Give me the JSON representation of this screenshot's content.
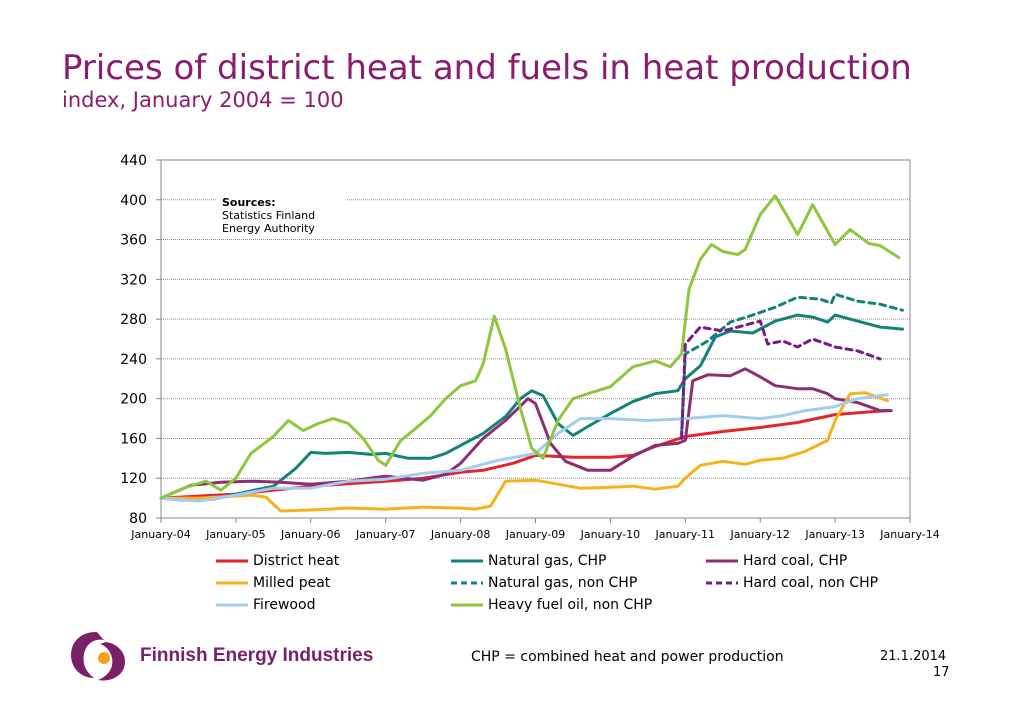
{
  "header": {
    "title": "Prices of district heat and fuels in heat production",
    "subtitle": "index, January 2004 = 100"
  },
  "sources_box": {
    "heading": "Sources:",
    "line1": "Statistics Finland",
    "line2": "Energy Authority"
  },
  "footer": {
    "logo_text": "Finnish Energy Industries",
    "note": "CHP = combined heat and power production",
    "date": "21.1.2014",
    "page": "17"
  },
  "colors": {
    "title": "#8a1d6e",
    "district_heat": "#e3262b",
    "natural_gas": "#138279",
    "hard_coal_chp": "#8b2f72",
    "hard_coal_nonchp": "#7a1a86",
    "milled_peat": "#f7b21b",
    "firewood": "#a3cdf0",
    "heavy_fuel_oil": "#8dc63f"
  },
  "chart_data": {
    "type": "line",
    "ylim": [
      80,
      440
    ],
    "yticks": [
      "80",
      "120",
      "160",
      "200",
      "240",
      "280",
      "320",
      "360",
      "400",
      "440"
    ],
    "xlim": [
      2004.0,
      2014.0
    ],
    "xtick_labels": [
      "January-04",
      "January-05",
      "January-06",
      "January-07",
      "January-08",
      "January-09",
      "January-10",
      "January-11",
      "January-12",
      "January-13",
      "January-14"
    ],
    "grid": true,
    "legend_position": "bottom",
    "series": [
      {
        "name": "District heat",
        "color": "#e3262b",
        "dash": false,
        "x": [
          2004.0,
          2005.0,
          2006.0,
          2007.0,
          2007.5,
          2008.0,
          2008.3,
          2008.7,
          2009.0,
          2009.5,
          2010.0,
          2010.3,
          2010.6,
          2011.0,
          2011.5,
          2012.0,
          2012.5,
          2013.0,
          2013.5,
          2013.7
        ],
        "y": [
          100,
          104,
          112,
          117,
          120,
          126,
          128,
          135,
          143,
          141,
          141,
          143,
          152,
          162,
          167,
          171,
          176,
          184,
          187,
          188
        ]
      },
      {
        "name": "Natural gas, CHP",
        "color": "#138279",
        "dash": false,
        "x": [
          2004.0,
          2004.3,
          2004.7,
          2005.0,
          2005.5,
          2005.8,
          2006.0,
          2006.2,
          2006.5,
          2006.8,
          2007.0,
          2007.3,
          2007.6,
          2007.8,
          2008.0,
          2008.3,
          2008.6,
          2008.8,
          2008.95,
          2009.1,
          2009.3,
          2009.5,
          2009.7,
          2010.0,
          2010.3,
          2010.6,
          2010.9,
          2011.0,
          2011.2,
          2011.4,
          2011.6,
          2011.9,
          2012.2,
          2012.5,
          2012.7,
          2012.9,
          2013.0,
          2013.3,
          2013.6,
          2013.9
        ],
        "y": [
          100,
          98,
          99,
          104,
          112,
          130,
          146,
          145,
          146,
          144,
          145,
          140,
          140,
          145,
          153,
          165,
          182,
          200,
          208,
          203,
          175,
          163,
          172,
          185,
          197,
          205,
          208,
          220,
          233,
          262,
          268,
          266,
          278,
          284,
          282,
          277,
          284,
          278,
          272,
          270
        ]
      },
      {
        "name": "Hard coal, CHP",
        "color": "#8b2f72",
        "dash": false,
        "x": [
          2004.0,
          2004.4,
          2004.8,
          2005.2,
          2005.6,
          2006.0,
          2006.5,
          2007.0,
          2007.5,
          2007.8,
          2008.0,
          2008.3,
          2008.6,
          2008.9,
          2009.0,
          2009.2,
          2009.4,
          2009.7,
          2010.0,
          2010.3,
          2010.6,
          2010.9,
          2011.0,
          2011.1,
          2011.3,
          2011.6,
          2011.8,
          2012.0,
          2012.2,
          2012.5,
          2012.7,
          2012.9,
          2013.0,
          2013.3,
          2013.6,
          2013.75
        ],
        "y": [
          100,
          113,
          116,
          117,
          116,
          114,
          117,
          122,
          118,
          124,
          135,
          160,
          178,
          200,
          195,
          155,
          137,
          128,
          128,
          142,
          153,
          155,
          158,
          218,
          224,
          223,
          230,
          222,
          213,
          210,
          210,
          205,
          200,
          196,
          188,
          188
        ]
      },
      {
        "name": "Milled peat",
        "color": "#f7b21b",
        "dash": false,
        "x": [
          2004.0,
          2004.5,
          2005.0,
          2005.2,
          2005.4,
          2005.6,
          2006.0,
          2006.5,
          2007.0,
          2007.5,
          2008.0,
          2008.2,
          2008.4,
          2008.6,
          2009.0,
          2009.3,
          2009.6,
          2010.0,
          2010.3,
          2010.6,
          2010.9,
          2011.0,
          2011.2,
          2011.5,
          2011.8,
          2012.0,
          2012.3,
          2012.6,
          2012.9,
          2013.0,
          2013.2,
          2013.4,
          2013.7
        ],
        "y": [
          100,
          100,
          102,
          103,
          101,
          87,
          88,
          90,
          89,
          91,
          90,
          89,
          92,
          117,
          118,
          114,
          110,
          111,
          112,
          109,
          112,
          120,
          133,
          137,
          134,
          138,
          140,
          147,
          158,
          178,
          205,
          206,
          198
        ]
      },
      {
        "name": "Firewood",
        "color": "#a3cdf0",
        "dash": false,
        "x": [
          2004.0,
          2004.5,
          2005.0,
          2005.5,
          2006.0,
          2006.5,
          2007.0,
          2007.5,
          2008.0,
          2008.5,
          2009.0,
          2009.3,
          2009.6,
          2010.0,
          2010.5,
          2011.0,
          2011.5,
          2012.0,
          2012.3,
          2012.6,
          2013.0,
          2013.3,
          2013.7
        ],
        "y": [
          100,
          97,
          103,
          110,
          110,
          117,
          119,
          125,
          128,
          138,
          145,
          165,
          180,
          180,
          178,
          180,
          183,
          180,
          183,
          188,
          192,
          200,
          204
        ]
      },
      {
        "name": "Heavy fuel oil, non CHP",
        "color": "#8dc63f",
        "dash": false,
        "x": [
          2004.0,
          2004.3,
          2004.6,
          2004.8,
          2005.0,
          2005.2,
          2005.5,
          2005.7,
          2005.9,
          2006.1,
          2006.3,
          2006.5,
          2006.7,
          2006.9,
          2007.0,
          2007.2,
          2007.4,
          2007.6,
          2007.8,
          2008.0,
          2008.2,
          2008.3,
          2008.45,
          2008.6,
          2008.8,
          2008.95,
          2009.1,
          2009.3,
          2009.5,
          2009.7,
          2010.0,
          2010.3,
          2010.6,
          2010.8,
          2010.95,
          2011.05,
          2011.2,
          2011.35,
          2011.5,
          2011.7,
          2011.8,
          2012.0,
          2012.2,
          2012.35,
          2012.5,
          2012.7,
          2012.85,
          2013.0,
          2013.2,
          2013.45,
          2013.6,
          2013.85
        ],
        "y": [
          100,
          110,
          117,
          108,
          120,
          145,
          162,
          178,
          168,
          175,
          180,
          175,
          160,
          138,
          133,
          158,
          170,
          183,
          200,
          213,
          218,
          235,
          283,
          250,
          190,
          150,
          140,
          178,
          200,
          205,
          212,
          232,
          238,
          232,
          245,
          310,
          340,
          355,
          348,
          345,
          350,
          385,
          404,
          385,
          365,
          395,
          375,
          355,
          370,
          356,
          354,
          342
        ]
      },
      {
        "name": "Natural gas, non CHP",
        "color": "#138279",
        "dash": true,
        "x": [
          2010.95,
          2011.0,
          2011.3,
          2011.6,
          2011.9,
          2012.2,
          2012.5,
          2012.8,
          2012.95,
          2013.0,
          2013.3,
          2013.6,
          2013.9
        ],
        "y": [
          165,
          245,
          258,
          277,
          284,
          292,
          302,
          300,
          296,
          305,
          298,
          295,
          289
        ]
      },
      {
        "name": "Hard coal, non CHP",
        "color": "#7a1a86",
        "dash": true,
        "x": [
          2010.95,
          2011.0,
          2011.2,
          2011.5,
          2011.8,
          2012.0,
          2012.1,
          2012.3,
          2012.5,
          2012.7,
          2013.0,
          2013.3,
          2013.6
        ],
        "y": [
          160,
          255,
          272,
          268,
          274,
          278,
          255,
          258,
          252,
          260,
          252,
          248,
          240
        ]
      }
    ]
  }
}
